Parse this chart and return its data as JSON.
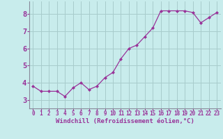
{
  "x": [
    0,
    1,
    2,
    3,
    4,
    5,
    6,
    7,
    8,
    9,
    10,
    11,
    12,
    13,
    14,
    15,
    16,
    17,
    18,
    19,
    20,
    21,
    22,
    23
  ],
  "y": [
    3.8,
    3.5,
    3.5,
    3.5,
    3.2,
    3.7,
    4.0,
    3.6,
    3.8,
    4.3,
    4.6,
    5.4,
    6.0,
    6.2,
    6.7,
    7.2,
    8.2,
    8.2,
    8.2,
    8.2,
    8.1,
    7.5,
    7.8,
    8.1
  ],
  "line_color": "#993399",
  "marker": "D",
  "marker_size": 2.0,
  "bg_color": "#c8ecec",
  "grid_color": "#a8cccc",
  "xlabel": "Windchill (Refroidissement éolien,°C)",
  "xlabel_color": "#993399",
  "tick_color": "#993399",
  "axis_color": "#888899",
  "ylim": [
    2.5,
    8.75
  ],
  "xlim": [
    -0.5,
    23.5
  ],
  "yticks": [
    3,
    4,
    5,
    6,
    7,
    8
  ],
  "xticks": [
    0,
    1,
    2,
    3,
    4,
    5,
    6,
    7,
    8,
    9,
    10,
    11,
    12,
    13,
    14,
    15,
    16,
    17,
    18,
    19,
    20,
    21,
    22,
    23
  ],
  "tick_fontsize": 5.5,
  "ylabel_fontsize": 7.5,
  "xlabel_fontsize": 6.5
}
